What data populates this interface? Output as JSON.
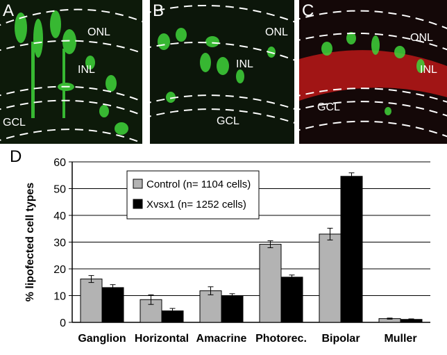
{
  "panels": [
    {
      "letter": "A",
      "labels": {
        "onl": "ONL",
        "inl": "INL",
        "gcl": "GCL"
      }
    },
    {
      "letter": "B",
      "labels": {
        "onl": "ONL",
        "inl": "INL",
        "gcl": "GCL"
      }
    },
    {
      "letter": "C",
      "labels": {
        "onl": "ONL",
        "inl": "INL",
        "gcl": "GCL"
      }
    }
  ],
  "colors": {
    "control": "#b3b3b3",
    "xvsx1": "#000000",
    "fluor_green": "#3fd43a",
    "fluor_red": "#d01a1a"
  },
  "chart_data": {
    "type": "bar",
    "letter": "D",
    "categories": [
      "Ganglion",
      "Horizontal",
      "Amacrine",
      "Photorec.",
      "Bipolar",
      "Muller"
    ],
    "series": [
      {
        "name": "Control (n= 1104 cells)",
        "values": [
          16.2,
          8.5,
          11.8,
          29.2,
          33.0,
          1.4
        ],
        "errors": [
          1.3,
          1.8,
          1.5,
          1.3,
          2.2,
          0.2
        ]
      },
      {
        "name": "Xvsx1 (n= 1252 cells)",
        "values": [
          13.0,
          4.3,
          9.8,
          16.9,
          54.6,
          1.1
        ],
        "errors": [
          1.1,
          0.9,
          0.9,
          0.8,
          1.3,
          0.2
        ]
      }
    ],
    "xlabel": "",
    "ylabel": "% lipofected cell types",
    "ylim": [
      0,
      60
    ],
    "yticks": [
      0,
      10,
      20,
      30,
      40,
      50,
      60
    ],
    "grid": true,
    "legend_position": "top-left"
  }
}
